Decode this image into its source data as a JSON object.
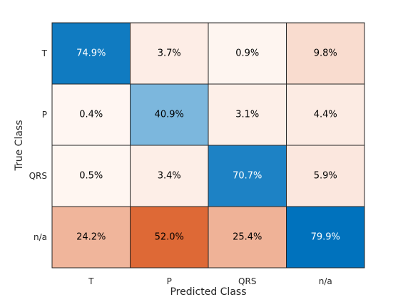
{
  "chart_data": {
    "type": "heatmap",
    "xlabel": "Predicted Class",
    "ylabel": "True Class",
    "x_categories": [
      "T",
      "P",
      "QRS",
      "n/a"
    ],
    "y_categories": [
      "T",
      "P",
      "QRS",
      "n/a"
    ],
    "values": [
      [
        74.9,
        3.7,
        0.9,
        9.8
      ],
      [
        0.4,
        40.9,
        3.1,
        4.4
      ],
      [
        0.5,
        3.4,
        70.7,
        5.9
      ],
      [
        24.2,
        52.0,
        25.4,
        79.9
      ]
    ],
    "value_labels": [
      [
        "74.9%",
        "3.7%",
        "0.9%",
        "9.8%"
      ],
      [
        "0.4%",
        "40.9%",
        "3.1%",
        "4.4%"
      ],
      [
        "0.5%",
        "3.4%",
        "70.7%",
        "5.9%"
      ],
      [
        "24.2%",
        "52.0%",
        "25.4%",
        "79.9%"
      ]
    ],
    "colors": {
      "diagonal_high": "#0072bd",
      "diagonal_low": "#ffffff",
      "offdiag_high": "#d95319",
      "offdiag_low": "#ffffff",
      "border": "#262626"
    }
  }
}
